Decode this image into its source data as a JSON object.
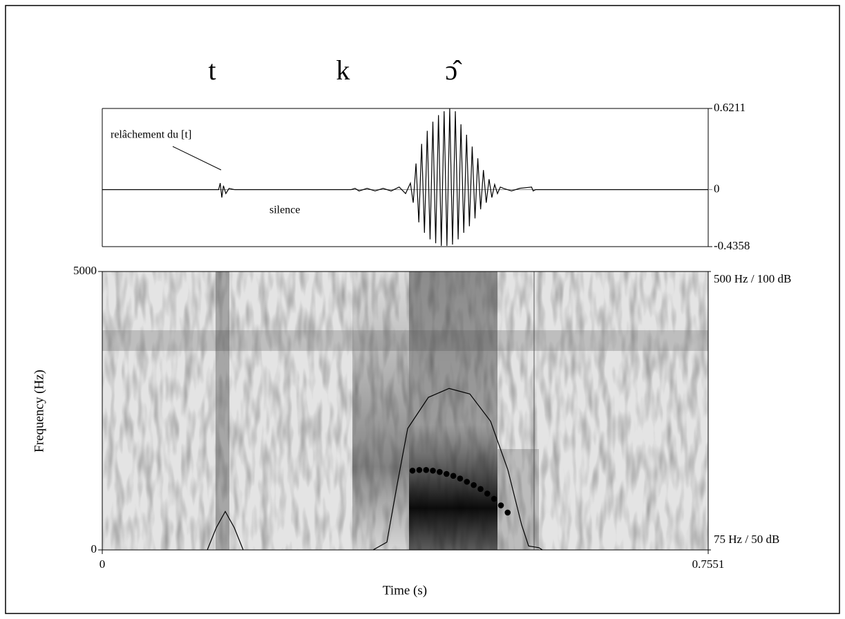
{
  "chart_data": [
    {
      "type": "line",
      "segment_labels": [
        "t",
        "k",
        "ɔ̂"
      ],
      "segment_times": [
        0.137,
        0.3,
        0.435
      ],
      "annotations": [
        "relâchement du [t]",
        "silence"
      ],
      "xlim": [
        0,
        0.7551
      ],
      "ylim": [
        -0.4358,
        0.6211
      ],
      "yticks": [
        0.6211,
        0,
        -0.4358
      ],
      "series": [
        {
          "color": "#000000",
          "x": [
            0,
            0.145,
            0.147,
            0.149,
            0.151,
            0.154,
            0.158,
            0.165,
            0.31,
            0.315,
            0.32,
            0.33,
            0.34,
            0.35,
            0.36,
            0.37,
            0.378,
            0.384,
            0.3875,
            0.391,
            0.3945,
            0.398,
            0.4015,
            0.405,
            0.4085,
            0.412,
            0.4155,
            0.419,
            0.4225,
            0.426,
            0.4295,
            0.433,
            0.4365,
            0.44,
            0.4435,
            0.447,
            0.4505,
            0.454,
            0.4575,
            0.461,
            0.4645,
            0.468,
            0.4715,
            0.475,
            0.4785,
            0.482,
            0.4855,
            0.489,
            0.4925,
            0.496,
            0.5,
            0.51,
            0.52,
            0.535,
            0.537,
            0.54,
            0.7551
          ],
          "values": [
            0,
            0,
            0.05,
            -0.06,
            0.03,
            -0.03,
            0.01,
            0,
            0,
            0.01,
            -0.01,
            0.01,
            -0.01,
            0.01,
            -0.01,
            0.02,
            -0.03,
            0.05,
            -0.1,
            0.2,
            -0.25,
            0.35,
            -0.33,
            0.45,
            -0.38,
            0.52,
            -0.41,
            0.57,
            -0.43,
            0.6,
            -0.43,
            0.62,
            -0.42,
            0.6,
            -0.38,
            0.5,
            -0.33,
            0.42,
            -0.28,
            0.33,
            -0.22,
            0.24,
            -0.15,
            0.15,
            -0.1,
            0.08,
            -0.06,
            0.04,
            -0.03,
            0.02,
            0.01,
            -0.01,
            0.01,
            0.02,
            -0.01,
            0,
            0
          ]
        }
      ]
    },
    {
      "type": "spectrogram",
      "xlabel": "Time (s)",
      "ylabel": "Frequency (Hz)",
      "xlim": [
        0,
        0.7551
      ],
      "xticks": [
        0,
        0.7551
      ],
      "ylim": [
        0,
        5000
      ],
      "yticks": [
        0,
        5000
      ],
      "y2lim": [
        75,
        500
      ],
      "y2ticks": [
        {
          "value": 75,
          "label": "75 Hz / 50 dB"
        },
        {
          "value": 500,
          "label": "500 Hz / 100 dB"
        }
      ],
      "y3lim": [
        50,
        100
      ],
      "series": [
        {
          "kind": "dots",
          "axis": "y2",
          "color": "#000000",
          "x": [
            0.3866,
            0.3951,
            0.4036,
            0.412,
            0.4205,
            0.429,
            0.4375,
            0.4459,
            0.4544,
            0.4629,
            0.4714,
            0.4798,
            0.4883,
            0.4968,
            0.5052
          ],
          "values": [
            196,
            197,
            197,
            196,
            194,
            191,
            188,
            184,
            179,
            174,
            168,
            161,
            153,
            143,
            132
          ]
        },
        {
          "kind": "line",
          "axis": "y3",
          "color": "#000000",
          "x": [
            0.1309,
            0.1421,
            0.1533,
            0.1645,
            0.1756,
            null,
            0.3375,
            0.3547,
            0.3677,
            0.3806,
            0.4064,
            0.4322,
            0.4581,
            0.4839,
            0.5054,
            0.5226,
            0.5313,
            0.5442,
            0.5485
          ],
          "values": [
            50,
            54,
            56.9,
            54,
            50,
            null,
            50,
            51.4,
            61.9,
            71.8,
            77.4,
            79.0,
            78.0,
            73.1,
            64.4,
            54.5,
            50.7,
            50.4,
            50
          ]
        }
      ]
    }
  ]
}
